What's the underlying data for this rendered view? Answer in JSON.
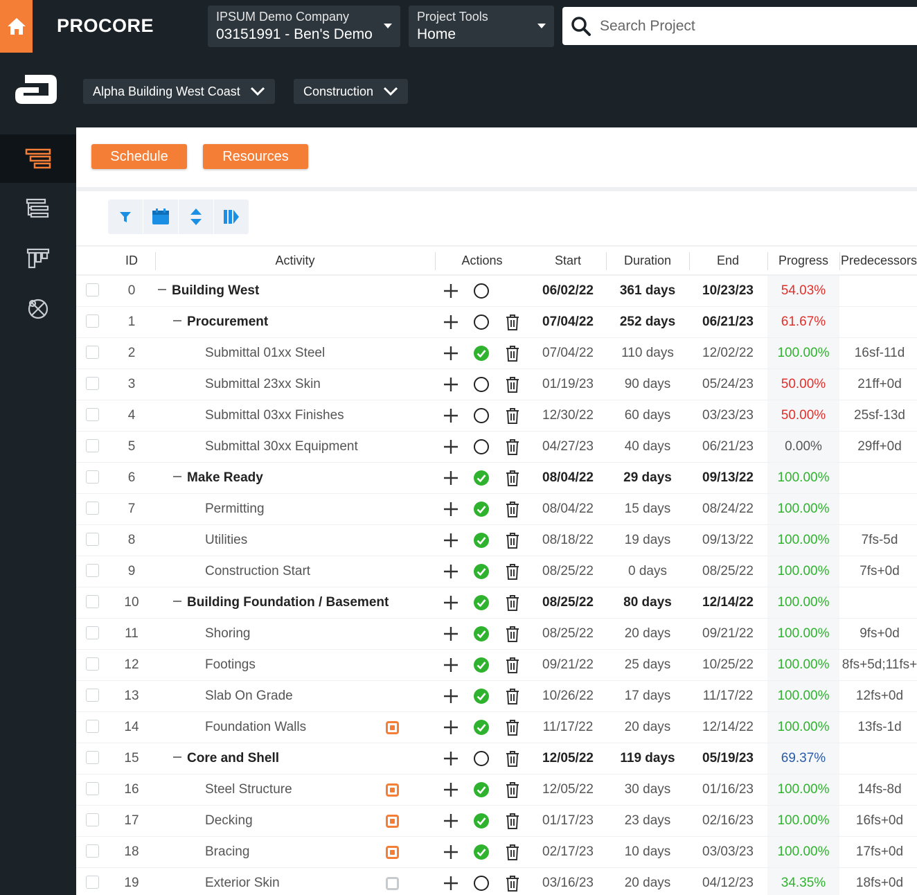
{
  "topbar": {
    "logo": "PROCORE",
    "company": {
      "label": "IPSUM Demo Company",
      "value": "03151991 - Ben's Demo"
    },
    "tools": {
      "label": "Project Tools",
      "value": "Home"
    },
    "search_placeholder": "Search Project"
  },
  "subbar": {
    "project": "Alpha Building West Coast",
    "phase": "Construction"
  },
  "tabs": {
    "schedule": "Schedule",
    "resources": "Resources"
  },
  "table": {
    "headers": {
      "id": "ID",
      "activity": "Activity",
      "actions": "Actions",
      "start": "Start",
      "duration": "Duration",
      "end": "End",
      "progress": "Progress",
      "predecessors": "Predecessors"
    },
    "rows": [
      {
        "id": "0",
        "activity": "Building West",
        "level": 0,
        "group": true,
        "done": false,
        "trash": false,
        "start": "06/02/22",
        "duration": "361 days",
        "end": "10/23/23",
        "progress": "54.03%",
        "pstatus": "red",
        "pred": "",
        "flag": ""
      },
      {
        "id": "1",
        "activity": "Procurement",
        "level": 1,
        "group": true,
        "done": false,
        "trash": true,
        "start": "07/04/22",
        "duration": "252 days",
        "end": "06/21/23",
        "progress": "61.67%",
        "pstatus": "red",
        "pred": "",
        "flag": ""
      },
      {
        "id": "2",
        "activity": "Submittal 01xx Steel",
        "level": 2,
        "group": false,
        "done": true,
        "trash": true,
        "start": "07/04/22",
        "duration": "110 days",
        "end": "12/02/22",
        "progress": "100.00%",
        "pstatus": "green",
        "pred": "16sf-11d",
        "flag": ""
      },
      {
        "id": "3",
        "activity": "Submittal 23xx Skin",
        "level": 2,
        "group": false,
        "done": false,
        "trash": true,
        "start": "01/19/23",
        "duration": "90 days",
        "end": "05/24/23",
        "progress": "50.00%",
        "pstatus": "red",
        "pred": "21ff+0d",
        "flag": ""
      },
      {
        "id": "4",
        "activity": "Submittal 03xx Finishes",
        "level": 2,
        "group": false,
        "done": false,
        "trash": true,
        "start": "12/30/22",
        "duration": "60 days",
        "end": "03/23/23",
        "progress": "50.00%",
        "pstatus": "red",
        "pred": "25sf-13d",
        "flag": ""
      },
      {
        "id": "5",
        "activity": "Submittal 30xx Equipment",
        "level": 2,
        "group": false,
        "done": false,
        "trash": true,
        "start": "04/27/23",
        "duration": "40 days",
        "end": "06/21/23",
        "progress": "0.00%",
        "pstatus": "grey",
        "pred": "29ff+0d",
        "flag": ""
      },
      {
        "id": "6",
        "activity": "Make Ready",
        "level": 1,
        "group": true,
        "done": true,
        "trash": true,
        "start": "08/04/22",
        "duration": "29 days",
        "end": "09/13/22",
        "progress": "100.00%",
        "pstatus": "green",
        "pred": "",
        "flag": ""
      },
      {
        "id": "7",
        "activity": "Permitting",
        "level": 2,
        "group": false,
        "done": true,
        "trash": true,
        "start": "08/04/22",
        "duration": "15 days",
        "end": "08/24/22",
        "progress": "100.00%",
        "pstatus": "green",
        "pred": "",
        "flag": ""
      },
      {
        "id": "8",
        "activity": "Utilities",
        "level": 2,
        "group": false,
        "done": true,
        "trash": true,
        "start": "08/18/22",
        "duration": "19 days",
        "end": "09/13/22",
        "progress": "100.00%",
        "pstatus": "green",
        "pred": "7fs-5d",
        "flag": ""
      },
      {
        "id": "9",
        "activity": "Construction Start",
        "level": 2,
        "group": false,
        "done": true,
        "trash": true,
        "start": "08/25/22",
        "duration": "0 days",
        "end": "08/25/22",
        "progress": "100.00%",
        "pstatus": "green",
        "pred": "7fs+0d",
        "flag": ""
      },
      {
        "id": "10",
        "activity": "Building Foundation / Basement",
        "level": 1,
        "group": true,
        "done": true,
        "trash": true,
        "start": "08/25/22",
        "duration": "80 days",
        "end": "12/14/22",
        "progress": "100.00%",
        "pstatus": "green",
        "pred": "",
        "flag": ""
      },
      {
        "id": "11",
        "activity": "Shoring",
        "level": 2,
        "group": false,
        "done": true,
        "trash": true,
        "start": "08/25/22",
        "duration": "20 days",
        "end": "09/21/22",
        "progress": "100.00%",
        "pstatus": "green",
        "pred": "9fs+0d",
        "flag": ""
      },
      {
        "id": "12",
        "activity": "Footings",
        "level": 2,
        "group": false,
        "done": true,
        "trash": true,
        "start": "09/21/22",
        "duration": "25 days",
        "end": "10/25/22",
        "progress": "100.00%",
        "pstatus": "green",
        "pred": "8fs+5d;11fs+",
        "flag": ""
      },
      {
        "id": "13",
        "activity": "Slab On Grade",
        "level": 2,
        "group": false,
        "done": true,
        "trash": true,
        "start": "10/26/22",
        "duration": "17 days",
        "end": "11/17/22",
        "progress": "100.00%",
        "pstatus": "green",
        "pred": "12fs+0d",
        "flag": ""
      },
      {
        "id": "14",
        "activity": "Foundation Walls",
        "level": 2,
        "group": false,
        "done": true,
        "trash": true,
        "start": "11/17/22",
        "duration": "20 days",
        "end": "12/14/22",
        "progress": "100.00%",
        "pstatus": "green",
        "pred": "13fs-1d",
        "flag": "orange"
      },
      {
        "id": "15",
        "activity": "Core and Shell",
        "level": 1,
        "group": true,
        "done": false,
        "trash": true,
        "start": "12/05/22",
        "duration": "119 days",
        "end": "05/19/23",
        "progress": "69.37%",
        "pstatus": "blue",
        "pred": "",
        "flag": ""
      },
      {
        "id": "16",
        "activity": "Steel Structure",
        "level": 2,
        "group": false,
        "done": true,
        "trash": true,
        "start": "12/05/22",
        "duration": "30 days",
        "end": "01/16/23",
        "progress": "100.00%",
        "pstatus": "green",
        "pred": "14fs-8d",
        "flag": "orange"
      },
      {
        "id": "17",
        "activity": "Decking",
        "level": 2,
        "group": false,
        "done": true,
        "trash": true,
        "start": "01/17/23",
        "duration": "23 days",
        "end": "02/16/23",
        "progress": "100.00%",
        "pstatus": "green",
        "pred": "16fs+0d",
        "flag": "orange"
      },
      {
        "id": "18",
        "activity": "Bracing",
        "level": 2,
        "group": false,
        "done": true,
        "trash": true,
        "start": "02/17/23",
        "duration": "10 days",
        "end": "03/03/23",
        "progress": "100.00%",
        "pstatus": "green",
        "pred": "17fs+0d",
        "flag": "orange"
      },
      {
        "id": "19",
        "activity": "Exterior Skin",
        "level": 2,
        "group": false,
        "done": false,
        "trash": true,
        "start": "03/16/23",
        "duration": "20 days",
        "end": "04/12/23",
        "progress": "34.35%",
        "pstatus": "green",
        "pred": "18fs+0d",
        "flag": "grey"
      }
    ]
  },
  "colors": {
    "accent": "#f47e36",
    "nav_bg": "#1b2228",
    "success": "#2fb32f",
    "danger": "#e0302c",
    "info": "#2b5aa8"
  }
}
